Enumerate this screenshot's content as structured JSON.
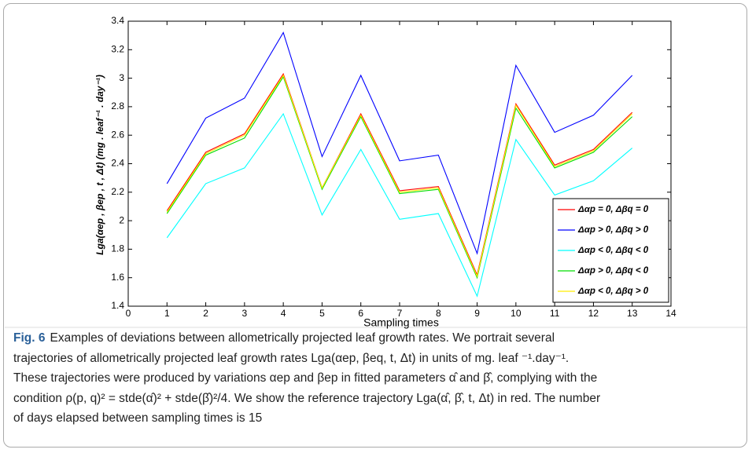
{
  "chart_data": {
    "type": "line",
    "x_label": "Sampling times",
    "y_label": "Lga(αep , βep , t , Δt)  (mg . leaf⁻¹ . day⁻¹)",
    "x": [
      1,
      2,
      3,
      4,
      5,
      6,
      7,
      8,
      9,
      10,
      11,
      12,
      13
    ],
    "series": [
      {
        "name": "Δαp = 0, Δβq = 0",
        "color": "#ff0000",
        "values": [
          2.07,
          2.48,
          2.61,
          3.03,
          2.23,
          2.75,
          2.21,
          2.24,
          1.62,
          2.82,
          2.39,
          2.5,
          2.76
        ]
      },
      {
        "name": "Δαp > 0, Δβq > 0",
        "color": "#0000ff",
        "values": [
          2.26,
          2.72,
          2.86,
          3.32,
          2.45,
          3.02,
          2.42,
          2.46,
          1.77,
          3.09,
          2.62,
          2.74,
          3.02
        ]
      },
      {
        "name": "Δαp < 0, Δβq < 0",
        "color": "#00ffff",
        "values": [
          1.88,
          2.26,
          2.37,
          2.75,
          2.04,
          2.5,
          2.01,
          2.05,
          1.47,
          2.57,
          2.18,
          2.28,
          2.51
        ]
      },
      {
        "name": "Δαp > 0, Δβq < 0",
        "color": "#00dd00",
        "values": [
          2.05,
          2.46,
          2.58,
          3.01,
          2.22,
          2.73,
          2.19,
          2.22,
          1.6,
          2.79,
          2.37,
          2.48,
          2.73
        ]
      },
      {
        "name": "Δαp < 0, Δβq > 0",
        "color": "#ffee00",
        "values": [
          2.06,
          2.47,
          2.6,
          3.02,
          2.23,
          2.74,
          2.2,
          2.23,
          1.61,
          2.81,
          2.38,
          2.49,
          2.75
        ]
      }
    ],
    "xlim": [
      0,
      14
    ],
    "xticks": [
      0,
      1,
      2,
      3,
      4,
      5,
      6,
      7,
      8,
      9,
      10,
      11,
      12,
      13,
      14
    ],
    "ylim": [
      1.4,
      3.4
    ],
    "yticks": [
      1.4,
      1.6,
      1.8,
      2,
      2.2,
      2.4,
      2.6,
      2.8,
      3,
      3.2,
      3.4
    ],
    "legend": "lower right"
  },
  "caption": {
    "label": "Fig. 6",
    "lines": [
      "Examples of deviations between allometrically projected leaf growth rates. We portrait several",
      "trajectories of allometrically projected leaf growth rates Lga(αep, βeq, t, Δt) in units of mg. leaf ⁻¹.day⁻¹.",
      "These trajectories were produced by variations αep and βep in fitted parameters α̂ and β̂, complying with the",
      "condition ρ(p, q)² = stde(α̂)² + stde(β̂)²/4. We show the reference trajectory Lga(α̂, β̂, t, Δt) in red. The number",
      "of days elapsed between sampling times is 15"
    ]
  }
}
